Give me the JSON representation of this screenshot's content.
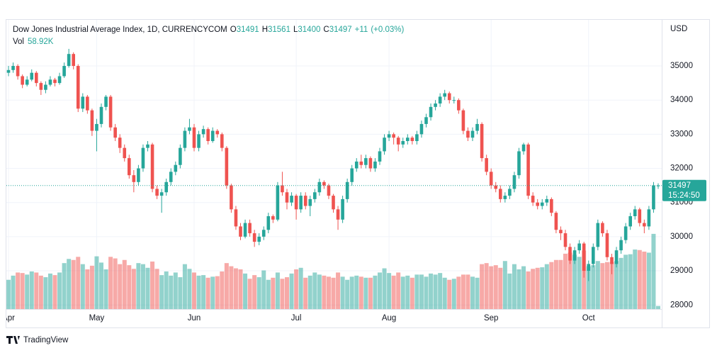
{
  "chart_data": {
    "type": "candlestick",
    "title": "Dow Jones Industrial Average Index, 1D, CURRENCYCOM",
    "ohlc_labels": [
      "O",
      "H",
      "L",
      "C"
    ],
    "change": {
      "value": 11,
      "label": "+11"
    },
    "change_pct": {
      "value": 0.03,
      "label": "(+0.03%)"
    },
    "volume_title": "Vol",
    "current_volume_label": "58.92K",
    "currency": "USD",
    "countdown": "15:24:50",
    "brand": "TradingView",
    "up_color": "#26a69a",
    "down_color": "#ef5350",
    "up_volume_color": "rgba(38,166,154,0.5)",
    "down_volume_color": "rgba(239,83,80,0.5)",
    "grid": true,
    "ylim": [
      27880,
      36350
    ],
    "yticks": [
      28000,
      29000,
      30000,
      31000,
      32000,
      33000,
      34000,
      35000
    ],
    "categories": [
      "Apr",
      null,
      null,
      null,
      null,
      null,
      null,
      null,
      null,
      null,
      null,
      null,
      null,
      null,
      null,
      null,
      null,
      null,
      null,
      "May",
      null,
      null,
      null,
      null,
      null,
      null,
      null,
      null,
      null,
      null,
      null,
      null,
      null,
      null,
      null,
      null,
      null,
      null,
      null,
      null,
      "Jun",
      null,
      null,
      null,
      null,
      null,
      null,
      null,
      null,
      null,
      null,
      null,
      null,
      null,
      null,
      null,
      null,
      null,
      null,
      null,
      null,
      null,
      "Jul",
      null,
      null,
      null,
      null,
      null,
      null,
      null,
      null,
      null,
      null,
      null,
      null,
      null,
      null,
      null,
      null,
      null,
      null,
      null,
      "Aug",
      null,
      null,
      null,
      null,
      null,
      null,
      null,
      null,
      null,
      null,
      null,
      null,
      null,
      null,
      null,
      null,
      null,
      null,
      null,
      null,
      null,
      "Sep",
      null,
      null,
      null,
      null,
      null,
      null,
      null,
      null,
      null,
      null,
      null,
      null,
      null,
      null,
      null,
      null,
      null,
      null,
      null,
      null,
      "Oct",
      null,
      null,
      null,
      null,
      null,
      null,
      null,
      null,
      null,
      null,
      null,
      null,
      null,
      null,
      null
    ],
    "ohlc": [
      [
        34800,
        35000,
        34700,
        34880
      ],
      [
        34880,
        35100,
        34800,
        35000
      ],
      [
        35000,
        35050,
        34600,
        34700
      ],
      [
        34700,
        34750,
        34350,
        34450
      ],
      [
        34450,
        34700,
        34400,
        34600
      ],
      [
        34600,
        34900,
        34550,
        34800
      ],
      [
        34800,
        34850,
        34400,
        34500
      ],
      [
        34500,
        34550,
        34150,
        34300
      ],
      [
        34300,
        34550,
        34200,
        34450
      ],
      [
        34450,
        34700,
        34400,
        34600
      ],
      [
        34600,
        34650,
        34400,
        34500
      ],
      [
        34500,
        34800,
        34450,
        34700
      ],
      [
        34700,
        35100,
        34650,
        35000
      ],
      [
        35000,
        35500,
        34950,
        35350
      ],
      [
        35350,
        35400,
        34900,
        35000
      ],
      [
        35000,
        35050,
        33650,
        33750
      ],
      [
        33750,
        34200,
        33650,
        34100
      ],
      [
        34100,
        34150,
        33600,
        33700
      ],
      [
        33700,
        33750,
        32950,
        33100
      ],
      [
        33100,
        33450,
        32500,
        33300
      ],
      [
        33300,
        33900,
        33200,
        33800
      ],
      [
        33800,
        34150,
        33700,
        34100
      ],
      [
        34100,
        34150,
        33100,
        33200
      ],
      [
        33200,
        33300,
        32800,
        32900
      ],
      [
        32900,
        33000,
        32450,
        32600
      ],
      [
        32600,
        32700,
        32200,
        32300
      ],
      [
        32300,
        32400,
        31700,
        31800
      ],
      [
        31800,
        31950,
        31300,
        31600
      ],
      [
        31600,
        32100,
        31500,
        32000
      ],
      [
        32000,
        32700,
        31900,
        32600
      ],
      [
        32600,
        32800,
        32500,
        32700
      ],
      [
        32700,
        32750,
        31300,
        31400
      ],
      [
        31400,
        31500,
        31100,
        31200
      ],
      [
        31200,
        31400,
        30700,
        31300
      ],
      [
        31300,
        31700,
        31200,
        31600
      ],
      [
        31600,
        32000,
        31500,
        31900
      ],
      [
        31900,
        32200,
        31800,
        32100
      ],
      [
        32100,
        32700,
        32000,
        32600
      ],
      [
        32600,
        33200,
        32500,
        33100
      ],
      [
        33100,
        33450,
        33000,
        33200
      ],
      [
        33200,
        33300,
        32500,
        32600
      ],
      [
        32600,
        33100,
        32500,
        33000
      ],
      [
        33000,
        33250,
        32900,
        33150
      ],
      [
        33150,
        33200,
        32700,
        32800
      ],
      [
        32800,
        33200,
        32750,
        33100
      ],
      [
        33100,
        33150,
        32900,
        33000
      ],
      [
        33000,
        33050,
        32500,
        32600
      ],
      [
        32600,
        32650,
        31400,
        31500
      ],
      [
        31500,
        31550,
        30700,
        30800
      ],
      [
        30800,
        30900,
        30200,
        30300
      ],
      [
        30300,
        30400,
        29900,
        30000
      ],
      [
        30000,
        30500,
        29950,
        30400
      ],
      [
        30400,
        30500,
        30000,
        30100
      ],
      [
        30100,
        30200,
        29700,
        29850
      ],
      [
        29850,
        30100,
        29750,
        30000
      ],
      [
        30000,
        30300,
        29900,
        30200
      ],
      [
        30200,
        30700,
        30100,
        30600
      ],
      [
        30600,
        30650,
        30400,
        30500
      ],
      [
        30500,
        31600,
        30450,
        31500
      ],
      [
        31500,
        31900,
        31200,
        31300
      ],
      [
        31300,
        31400,
        30800,
        31000
      ],
      [
        31000,
        31300,
        30900,
        31200
      ],
      [
        31200,
        31250,
        30500,
        30800
      ],
      [
        30800,
        31300,
        30700,
        31200
      ],
      [
        31200,
        31300,
        30800,
        30900
      ],
      [
        30900,
        31200,
        30600,
        31100
      ],
      [
        31100,
        31400,
        31000,
        31300
      ],
      [
        31300,
        31700,
        31200,
        31600
      ],
      [
        31600,
        31650,
        31400,
        31500
      ],
      [
        31500,
        31550,
        31100,
        31200
      ],
      [
        31200,
        31250,
        30700,
        30800
      ],
      [
        30800,
        30900,
        30200,
        30500
      ],
      [
        30500,
        31200,
        30400,
        31100
      ],
      [
        31100,
        31700,
        31000,
        31600
      ],
      [
        31600,
        32100,
        31500,
        32000
      ],
      [
        32000,
        32300,
        31900,
        32200
      ],
      [
        32200,
        32400,
        32000,
        32100
      ],
      [
        32100,
        32400,
        32000,
        32300
      ],
      [
        32300,
        32350,
        31900,
        32000
      ],
      [
        32000,
        32300,
        31900,
        32200
      ],
      [
        32200,
        32600,
        32100,
        32500
      ],
      [
        32500,
        33000,
        32400,
        32900
      ],
      [
        32900,
        33100,
        32800,
        33000
      ],
      [
        33000,
        33050,
        32700,
        32900
      ],
      [
        32900,
        32950,
        32500,
        32700
      ],
      [
        32700,
        32900,
        32600,
        32800
      ],
      [
        32800,
        33000,
        32700,
        32900
      ],
      [
        32900,
        32950,
        32700,
        32800
      ],
      [
        32800,
        33100,
        32700,
        33000
      ],
      [
        33000,
        33400,
        32900,
        33300
      ],
      [
        33300,
        33600,
        33200,
        33500
      ],
      [
        33500,
        33900,
        33400,
        33800
      ],
      [
        33800,
        34000,
        33700,
        33900
      ],
      [
        33900,
        34200,
        33800,
        34100
      ],
      [
        34100,
        34300,
        34000,
        34200
      ],
      [
        34200,
        34250,
        33900,
        34000
      ],
      [
        34000,
        34100,
        33900,
        34000
      ],
      [
        34000,
        34050,
        33600,
        33700
      ],
      [
        33700,
        33750,
        33000,
        33100
      ],
      [
        33100,
        33200,
        32800,
        32900
      ],
      [
        32900,
        33200,
        32800,
        33100
      ],
      [
        33100,
        33450,
        33000,
        33300
      ],
      [
        33300,
        33350,
        32200,
        32300
      ],
      [
        32300,
        32400,
        31800,
        31900
      ],
      [
        31900,
        32000,
        31400,
        31500
      ],
      [
        31500,
        31600,
        31300,
        31400
      ],
      [
        31400,
        31500,
        31000,
        31100
      ],
      [
        31100,
        31300,
        31000,
        31200
      ],
      [
        31200,
        31500,
        31100,
        31400
      ],
      [
        31400,
        31900,
        31300,
        31800
      ],
      [
        31800,
        32600,
        31700,
        32500
      ],
      [
        32500,
        32750,
        32400,
        32700
      ],
      [
        32700,
        32750,
        31100,
        31200
      ],
      [
        31200,
        31300,
        30900,
        31000
      ],
      [
        31000,
        31100,
        30800,
        30900
      ],
      [
        30900,
        31100,
        30800,
        31000
      ],
      [
        31000,
        31200,
        30900,
        31100
      ],
      [
        31100,
        31150,
        30600,
        30700
      ],
      [
        30700,
        30750,
        30100,
        30200
      ],
      [
        30200,
        30300,
        29900,
        30100
      ],
      [
        30100,
        30200,
        29600,
        29700
      ],
      [
        29700,
        29800,
        29200,
        29300
      ],
      [
        29300,
        29700,
        29200,
        29600
      ],
      [
        29600,
        29900,
        29500,
        29800
      ],
      [
        29800,
        29850,
        28800,
        29000
      ],
      [
        29000,
        29300,
        28700,
        29200
      ],
      [
        29200,
        29800,
        29100,
        29700
      ],
      [
        29700,
        30500,
        29600,
        30400
      ],
      [
        30400,
        30450,
        30000,
        30100
      ],
      [
        30100,
        30200,
        29300,
        29400
      ],
      [
        29400,
        29500,
        28900,
        29200
      ],
      [
        29200,
        29700,
        29100,
        29600
      ],
      [
        29600,
        30000,
        29500,
        29900
      ],
      [
        29900,
        30400,
        29800,
        30300
      ],
      [
        30300,
        30700,
        30200,
        30600
      ],
      [
        30600,
        30900,
        30500,
        30800
      ],
      [
        30800,
        30850,
        30300,
        30400
      ],
      [
        30400,
        30500,
        30100,
        30300
      ],
      [
        30300,
        30900,
        30200,
        30800
      ],
      [
        30800,
        31600,
        30700,
        31500
      ],
      [
        31491,
        31561,
        31400,
        31497
      ]
    ],
    "volume": [
      560,
      640,
      700,
      690,
      660,
      720,
      700,
      640,
      610,
      680,
      650,
      700,
      880,
      960,
      940,
      1000,
      860,
      760,
      830,
      1010,
      890,
      760,
      1000,
      970,
      860,
      940,
      840,
      770,
      880,
      860,
      790,
      910,
      770,
      650,
      720,
      640,
      700,
      610,
      860,
      770,
      700,
      640,
      650,
      600,
      620,
      630,
      720,
      880,
      820,
      780,
      760,
      680,
      580,
      650,
      610,
      740,
      560,
      600,
      700,
      580,
      610,
      680,
      760,
      790,
      600,
      640,
      700,
      660,
      640,
      620,
      600,
      700,
      620,
      560,
      620,
      640,
      620,
      600,
      600,
      640,
      700,
      780,
      690,
      640,
      700,
      620,
      640,
      600,
      660,
      660,
      620,
      680,
      660,
      690,
      600,
      560,
      580,
      620,
      660,
      660,
      620,
      600,
      860,
      880,
      820,
      840,
      790,
      920,
      680,
      860,
      760,
      820,
      720,
      770,
      790,
      800,
      860,
      900,
      940,
      940,
      1060,
      1080,
      1040,
      1000,
      1120,
      820,
      840,
      920,
      880,
      900,
      900,
      920,
      980,
      1040,
      1050,
      1140,
      1130,
      1100,
      1080,
      1440,
      58.92
    ]
  }
}
